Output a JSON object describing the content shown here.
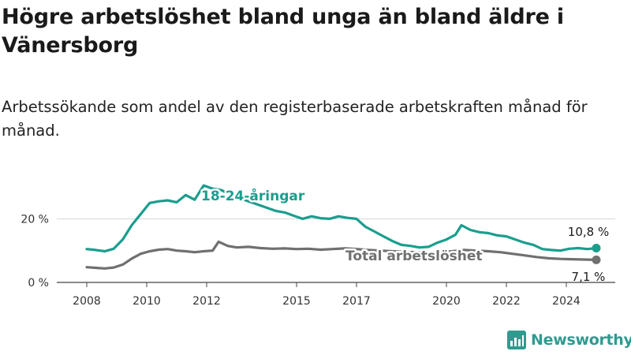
{
  "title": "Högre arbetslöshet bland unga än bland äldre i Vänersborg",
  "subtitle": "Arbetssökande som andel av den registerbaserade arbetskraften månad för månad.",
  "brand": {
    "name": "Newsworthy",
    "icon": "newsworthy-logo-icon",
    "color": "#2f9b8f"
  },
  "chart_data": {
    "type": "line",
    "title": "Högre arbetslöshet bland unga än bland äldre i Vänersborg",
    "subtitle": "Arbetssökande som andel av den registerbaserade arbetskraften månad för månad.",
    "xlabel": "",
    "ylabel": "",
    "x_ticks": [
      "2008",
      "2010",
      "2012",
      "2015",
      "2017",
      "2020",
      "2022",
      "2024"
    ],
    "y_ticks": [
      {
        "value": 0,
        "label": "0 %"
      },
      {
        "value": 20,
        "label": "20 %"
      }
    ],
    "ylim": [
      0,
      35
    ],
    "xlim": [
      2007.5,
      2025.5
    ],
    "grid": "horizontal",
    "legend": "inline labels",
    "series": [
      {
        "name": "18-24-åringar",
        "color": "#1a9e8e",
        "end_label": "10,8 %",
        "points": [
          [
            2008.0,
            10.5
          ],
          [
            2008.3,
            10.2
          ],
          [
            2008.6,
            9.8
          ],
          [
            2008.9,
            10.6
          ],
          [
            2009.2,
            13.5
          ],
          [
            2009.5,
            18.0
          ],
          [
            2009.8,
            21.5
          ],
          [
            2010.1,
            25.0
          ],
          [
            2010.4,
            25.5
          ],
          [
            2010.7,
            25.8
          ],
          [
            2011.0,
            25.2
          ],
          [
            2011.3,
            27.5
          ],
          [
            2011.6,
            26.0
          ],
          [
            2011.9,
            30.5
          ],
          [
            2012.2,
            29.5
          ],
          [
            2012.5,
            29.0
          ],
          [
            2012.8,
            27.5
          ],
          [
            2013.1,
            26.5
          ],
          [
            2013.4,
            25.5
          ],
          [
            2013.7,
            24.5
          ],
          [
            2014.0,
            23.5
          ],
          [
            2014.3,
            22.5
          ],
          [
            2014.6,
            22.0
          ],
          [
            2014.9,
            21.0
          ],
          [
            2015.2,
            20.0
          ],
          [
            2015.5,
            20.8
          ],
          [
            2015.8,
            20.2
          ],
          [
            2016.1,
            20.0
          ],
          [
            2016.4,
            20.8
          ],
          [
            2016.7,
            20.3
          ],
          [
            2017.0,
            20.0
          ],
          [
            2017.3,
            17.5
          ],
          [
            2017.6,
            16.0
          ],
          [
            2017.9,
            14.5
          ],
          [
            2018.2,
            13.0
          ],
          [
            2018.5,
            11.8
          ],
          [
            2018.8,
            11.5
          ],
          [
            2019.1,
            11.0
          ],
          [
            2019.4,
            11.2
          ],
          [
            2019.7,
            12.5
          ],
          [
            2020.0,
            13.5
          ],
          [
            2020.3,
            15.0
          ],
          [
            2020.5,
            18.0
          ],
          [
            2020.8,
            16.5
          ],
          [
            2021.1,
            15.8
          ],
          [
            2021.4,
            15.5
          ],
          [
            2021.7,
            14.8
          ],
          [
            2022.0,
            14.5
          ],
          [
            2022.3,
            13.5
          ],
          [
            2022.6,
            12.5
          ],
          [
            2022.9,
            11.8
          ],
          [
            2023.2,
            10.5
          ],
          [
            2023.5,
            10.2
          ],
          [
            2023.8,
            10.0
          ],
          [
            2024.1,
            10.6
          ],
          [
            2024.4,
            10.8
          ],
          [
            2024.7,
            10.5
          ],
          [
            2025.0,
            10.8
          ]
        ]
      },
      {
        "name": "Total arbetslöshet",
        "color": "#707070",
        "end_label": "7,1 %",
        "points": [
          [
            2008.0,
            4.8
          ],
          [
            2008.3,
            4.6
          ],
          [
            2008.6,
            4.4
          ],
          [
            2008.9,
            4.7
          ],
          [
            2009.2,
            5.6
          ],
          [
            2009.5,
            7.5
          ],
          [
            2009.8,
            9.0
          ],
          [
            2010.1,
            9.8
          ],
          [
            2010.4,
            10.3
          ],
          [
            2010.7,
            10.5
          ],
          [
            2011.0,
            10.0
          ],
          [
            2011.3,
            9.8
          ],
          [
            2011.6,
            9.5
          ],
          [
            2011.9,
            9.8
          ],
          [
            2012.2,
            10.0
          ],
          [
            2012.4,
            12.8
          ],
          [
            2012.7,
            11.5
          ],
          [
            2013.0,
            11.0
          ],
          [
            2013.4,
            11.2
          ],
          [
            2013.8,
            10.8
          ],
          [
            2014.2,
            10.6
          ],
          [
            2014.6,
            10.7
          ],
          [
            2015.0,
            10.5
          ],
          [
            2015.4,
            10.6
          ],
          [
            2015.8,
            10.3
          ],
          [
            2016.2,
            10.5
          ],
          [
            2016.6,
            10.7
          ],
          [
            2017.0,
            10.5
          ],
          [
            2017.4,
            10.2
          ],
          [
            2017.8,
            10.0
          ],
          [
            2018.2,
            9.8
          ],
          [
            2018.6,
            9.6
          ],
          [
            2019.0,
            9.5
          ],
          [
            2019.4,
            9.4
          ],
          [
            2019.8,
            9.5
          ],
          [
            2020.2,
            9.8
          ],
          [
            2020.6,
            10.2
          ],
          [
            2021.0,
            10.0
          ],
          [
            2021.4,
            9.8
          ],
          [
            2021.8,
            9.5
          ],
          [
            2022.2,
            9.0
          ],
          [
            2022.6,
            8.5
          ],
          [
            2023.0,
            8.0
          ],
          [
            2023.4,
            7.6
          ],
          [
            2023.8,
            7.4
          ],
          [
            2024.2,
            7.3
          ],
          [
            2024.6,
            7.2
          ],
          [
            2025.0,
            7.1
          ]
        ]
      }
    ]
  }
}
